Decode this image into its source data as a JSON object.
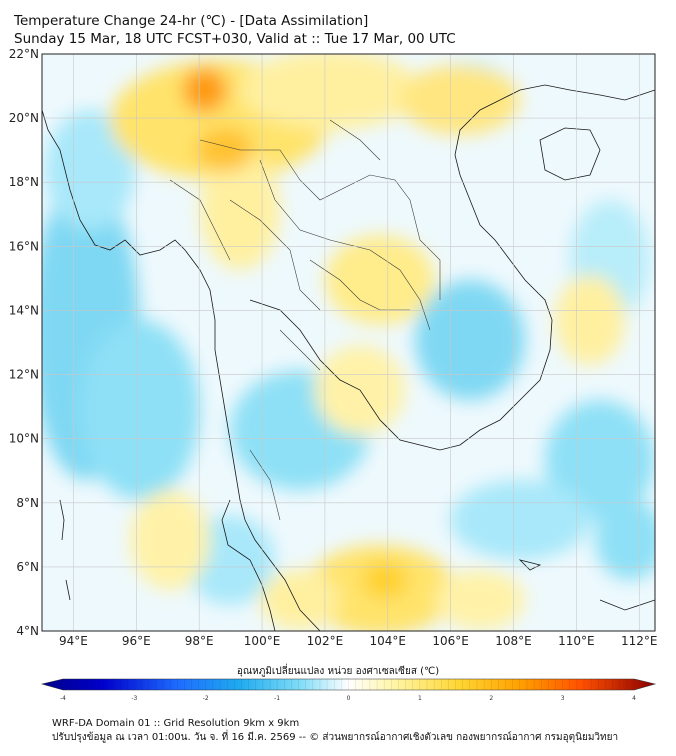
{
  "header": {
    "title_line1": "Temperature Change 24-hr (℃) - [Data Assimilation]",
    "title_line2": "Sunday 15 Mar, 18 UTC FCST+030, Valid at :: Tue 17 Mar, 00 UTC"
  },
  "map": {
    "lat_ticks": [
      "22°N",
      "20°N",
      "18°N",
      "16°N",
      "14°N",
      "12°N",
      "10°N",
      "8°N",
      "6°N",
      "4°N"
    ],
    "lon_ticks": [
      "94°E",
      "96°E",
      "98°E",
      "100°E",
      "102°E",
      "104°E",
      "106°E",
      "108°E",
      "110°E",
      "112°E"
    ],
    "lat_range": [
      4,
      22
    ],
    "lon_range": [
      93,
      112.5
    ],
    "gridlines": true
  },
  "colorbar": {
    "label": "อุณหภูมิเปลี่ยนแปลง หน่วย องศาเซลเซียส (℃)",
    "ticks": [
      "-4",
      "-3",
      "-2",
      "-1",
      "0",
      "1",
      "2",
      "3",
      "4"
    ],
    "range": [
      -4,
      4
    ],
    "colors": [
      "#00008b",
      "#0000cd",
      "#1e5bff",
      "#1e90ff",
      "#30b8f0",
      "#5fd3f5",
      "#a8e8fa",
      "#ffffff",
      "#fff4a0",
      "#ffe14d",
      "#ffc21a",
      "#ff9f00",
      "#ff6a00",
      "#e02000",
      "#8b0000"
    ]
  },
  "footer": {
    "line1": "WRF-DA Domain 01 :: Grid Resolution 9km x 9km",
    "line2": "ปรับปรุงข้อมูล ณ เวลา 01:00น. วัน จ. ที่ 16 มี.ค. 2569 -- © ส่วนพยากรณ์อากาศเชิงตัวเลข กองพยากรณ์อากาศ กรมอุตุนิยมวิทยา"
  }
}
